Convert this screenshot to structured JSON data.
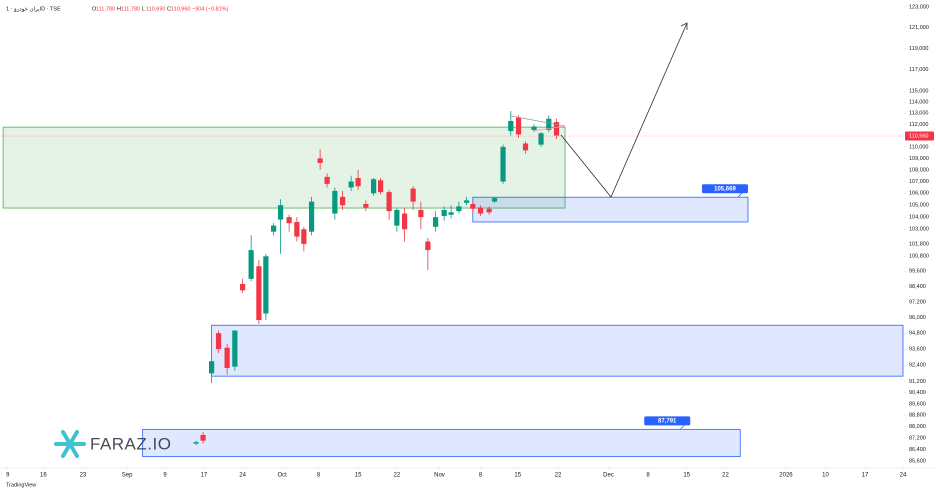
{
  "chart_data": {
    "type": "candlestick",
    "symbol": "ایران خودرو · 1D · TSE",
    "ohlc": [
      {
        "key": "O",
        "value": "111,780"
      },
      {
        "key": "H",
        "value": "111,780"
      },
      {
        "key": "L",
        "value": "110,690"
      },
      {
        "key": "C",
        "value": "110,960"
      }
    ],
    "change": "−904 (−0.81%)",
    "watermark": "FARAZ.IO",
    "footer": "TradingView",
    "log_scale": true,
    "grid": false,
    "up_color": "#089981",
    "down_color": "#f23645",
    "xlim": [
      -1,
      115.5
    ],
    "ylim": [
      85600,
      123000
    ],
    "xticks": [
      {
        "value": 0,
        "label": "9"
      },
      {
        "value": 4.6,
        "label": "16"
      },
      {
        "value": 9.7,
        "label": "23"
      },
      {
        "value": 15.4,
        "label": "Sep"
      },
      {
        "value": 20.3,
        "label": "9"
      },
      {
        "value": 25.3,
        "label": "17"
      },
      {
        "value": 30.3,
        "label": "24"
      },
      {
        "value": 35.4,
        "label": "Oct"
      },
      {
        "value": 40.1,
        "label": "8"
      },
      {
        "value": 45.2,
        "label": "15"
      },
      {
        "value": 50.2,
        "label": "22"
      },
      {
        "value": 55.7,
        "label": "Nov"
      },
      {
        "value": 61.0,
        "label": "8"
      },
      {
        "value": 65.8,
        "label": "15"
      },
      {
        "value": 71.0,
        "label": "22"
      },
      {
        "value": 77.5,
        "label": "Dec"
      },
      {
        "value": 82.6,
        "label": "8"
      },
      {
        "value": 87.6,
        "label": "15"
      },
      {
        "value": 92.6,
        "label": "22"
      },
      {
        "value": 100.4,
        "label": "2026"
      },
      {
        "value": 105.5,
        "label": "10"
      },
      {
        "value": 110.6,
        "label": "17"
      },
      {
        "value": 115.5,
        "label": "24"
      }
    ],
    "yticks": [
      {
        "value": 123000,
        "label": "123,000"
      },
      {
        "value": 121000,
        "label": "121,000"
      },
      {
        "value": 119000,
        "label": "119,000"
      },
      {
        "value": 117000,
        "label": "117,000"
      },
      {
        "value": 115000,
        "label": "115,000"
      },
      {
        "value": 114000,
        "label": "114,000"
      },
      {
        "value": 113000,
        "label": "113,000"
      },
      {
        "value": 112000,
        "label": "112,000"
      },
      {
        "value": 110000,
        "label": "110,000"
      },
      {
        "value": 109000,
        "label": "109,000"
      },
      {
        "value": 108000,
        "label": "108,000"
      },
      {
        "value": 107000,
        "label": "107,000"
      },
      {
        "value": 106000,
        "label": "106,000"
      },
      {
        "value": 105000,
        "label": "105,000"
      },
      {
        "value": 104000,
        "label": "104,000"
      },
      {
        "value": 103000,
        "label": "103,000"
      },
      {
        "value": 101800,
        "label": "101,800"
      },
      {
        "value": 100800,
        "label": "100,800"
      },
      {
        "value": 99600,
        "label": "99,600"
      },
      {
        "value": 98400,
        "label": "98,400"
      },
      {
        "value": 97200,
        "label": "97,200"
      },
      {
        "value": 96000,
        "label": "96,000"
      },
      {
        "value": 94800,
        "label": "94,800"
      },
      {
        "value": 93600,
        "label": "93,600"
      },
      {
        "value": 92400,
        "label": "92,400"
      },
      {
        "value": 91200,
        "label": "91,200"
      },
      {
        "value": 90400,
        "label": "90,400"
      },
      {
        "value": 89600,
        "label": "89,600"
      },
      {
        "value": 88800,
        "label": "88,800"
      },
      {
        "value": 88000,
        "label": "88,000"
      },
      {
        "value": 87200,
        "label": "87,200"
      },
      {
        "value": 86400,
        "label": "86,400"
      },
      {
        "value": 85600,
        "label": "85,600"
      }
    ],
    "last_price": {
      "value": 110960,
      "label": "110,960"
    },
    "zones": [
      {
        "x": [
          -0.6,
          71.9
        ],
        "ylow": 104760,
        "yhigh": 111750,
        "color": "#4caf50"
      },
      {
        "x": [
          60.0,
          95.5
        ],
        "ylow": 103600,
        "yhigh": 105669,
        "yhigh_label": "105,669",
        "color": "#2962ff"
      },
      {
        "x": [
          26.3,
          119
        ],
        "ylow": 91600,
        "yhigh": 95400,
        "color": "#2962ff"
      },
      {
        "x": [
          17.4,
          94.5
        ],
        "ylow": 85900,
        "yhigh": 87791,
        "yhigh_label": "87,791",
        "color": "#2962ff"
      }
    ],
    "candles": [
      {
        "x": 24.3,
        "open": 86800,
        "high": 87000,
        "low": 86700,
        "close": 86900
      },
      {
        "x": 25.2,
        "open": 87400,
        "high": 87600,
        "low": 86800,
        "close": 87000
      },
      {
        "x": 26.3,
        "open": 91800,
        "high": 93000,
        "low": 91100,
        "close": 92700
      },
      {
        "x": 27.2,
        "open": 94800,
        "high": 95000,
        "low": 93300,
        "close": 93600
      },
      {
        "x": 28.3,
        "open": 93700,
        "high": 94000,
        "low": 91700,
        "close": 92200
      },
      {
        "x": 29.3,
        "open": 92300,
        "high": 95000,
        "low": 92000,
        "close": 95000
      },
      {
        "x": 30.3,
        "open": 98600,
        "high": 99000,
        "low": 97900,
        "close": 98100
      },
      {
        "x": 31.4,
        "open": 99000,
        "high": 102500,
        "low": 98800,
        "close": 101300
      },
      {
        "x": 32.4,
        "open": 100000,
        "high": 100500,
        "low": 95500,
        "close": 95800
      },
      {
        "x": 33.3,
        "open": 96300,
        "high": 101000,
        "low": 95800,
        "close": 100800
      },
      {
        "x": 34.3,
        "open": 102800,
        "high": 103500,
        "low": 102500,
        "close": 103300
      },
      {
        "x": 35.2,
        "open": 103800,
        "high": 105500,
        "low": 101000,
        "close": 105000
      },
      {
        "x": 36.3,
        "open": 104000,
        "high": 104200,
        "low": 102800,
        "close": 103500
      },
      {
        "x": 37.3,
        "open": 103600,
        "high": 104000,
        "low": 102000,
        "close": 102400
      },
      {
        "x": 38.2,
        "open": 103000,
        "high": 103200,
        "low": 101200,
        "close": 101800
      },
      {
        "x": 39.2,
        "open": 102800,
        "high": 105700,
        "low": 102500,
        "close": 105300
      },
      {
        "x": 40.3,
        "open": 109000,
        "high": 109800,
        "low": 108000,
        "close": 108600
      },
      {
        "x": 41.2,
        "open": 107400,
        "high": 107700,
        "low": 106500,
        "close": 106800
      },
      {
        "x": 42.2,
        "open": 104300,
        "high": 106500,
        "low": 103800,
        "close": 106200
      },
      {
        "x": 43.2,
        "open": 105700,
        "high": 106200,
        "low": 104600,
        "close": 105000
      },
      {
        "x": 44.3,
        "open": 106500,
        "high": 107500,
        "low": 106200,
        "close": 107000
      },
      {
        "x": 45.2,
        "open": 107300,
        "high": 108000,
        "low": 106300,
        "close": 106600
      },
      {
        "x": 46.2,
        "open": 105100,
        "high": 105400,
        "low": 104500,
        "close": 104800
      },
      {
        "x": 47.2,
        "open": 106000,
        "high": 107300,
        "low": 105800,
        "close": 107200
      },
      {
        "x": 48.1,
        "open": 107100,
        "high": 107300,
        "low": 105900,
        "close": 106100
      },
      {
        "x": 49.2,
        "open": 106100,
        "high": 106300,
        "low": 103800,
        "close": 104500
      },
      {
        "x": 50.2,
        "open": 103300,
        "high": 104800,
        "low": 102800,
        "close": 104600
      },
      {
        "x": 51.2,
        "open": 104300,
        "high": 104800,
        "low": 102000,
        "close": 103000
      },
      {
        "x": 52.3,
        "open": 106400,
        "high": 106600,
        "low": 104600,
        "close": 105300
      },
      {
        "x": 53.3,
        "open": 104600,
        "high": 105300,
        "low": 103000,
        "close": 104000
      },
      {
        "x": 54.2,
        "open": 102000,
        "high": 102300,
        "low": 99700,
        "close": 101300
      },
      {
        "x": 55.2,
        "open": 103200,
        "high": 104500,
        "low": 102800,
        "close": 104000
      },
      {
        "x": 56.3,
        "open": 104100,
        "high": 104900,
        "low": 103700,
        "close": 104600
      },
      {
        "x": 57.2,
        "open": 104200,
        "high": 105000,
        "low": 103900,
        "close": 104400
      },
      {
        "x": 58.2,
        "open": 104500,
        "high": 105300,
        "low": 104300,
        "close": 104900
      },
      {
        "x": 59.2,
        "open": 105200,
        "high": 105700,
        "low": 105000,
        "close": 105400
      },
      {
        "x": 60.0,
        "open": 105100,
        "high": 105300,
        "low": 104400,
        "close": 104700
      },
      {
        "x": 61.0,
        "open": 104800,
        "high": 105000,
        "low": 104100,
        "close": 104300
      },
      {
        "x": 62.1,
        "open": 104700,
        "high": 104900,
        "low": 104200,
        "close": 104400
      },
      {
        "x": 62.8,
        "open": 105300,
        "high": 105700,
        "low": 105200,
        "close": 105600
      },
      {
        "x": 63.9,
        "open": 107000,
        "high": 110200,
        "low": 106800,
        "close": 110000
      },
      {
        "x": 64.9,
        "open": 111400,
        "high": 113200,
        "low": 111000,
        "close": 112300
      },
      {
        "x": 65.9,
        "open": 112600,
        "high": 112800,
        "low": 110800,
        "close": 111100
      },
      {
        "x": 66.8,
        "open": 110300,
        "high": 110500,
        "low": 109400,
        "close": 109700
      },
      {
        "x": 67.9,
        "open": 111500,
        "high": 112000,
        "low": 111300,
        "close": 111800
      },
      {
        "x": 68.8,
        "open": 110200,
        "high": 111300,
        "low": 110000,
        "close": 111200
      },
      {
        "x": 69.8,
        "open": 111500,
        "high": 112800,
        "low": 111300,
        "close": 112500
      },
      {
        "x": 70.8,
        "open": 112200,
        "high": 112500,
        "low": 110700,
        "close": 111000
      }
    ]
  }
}
